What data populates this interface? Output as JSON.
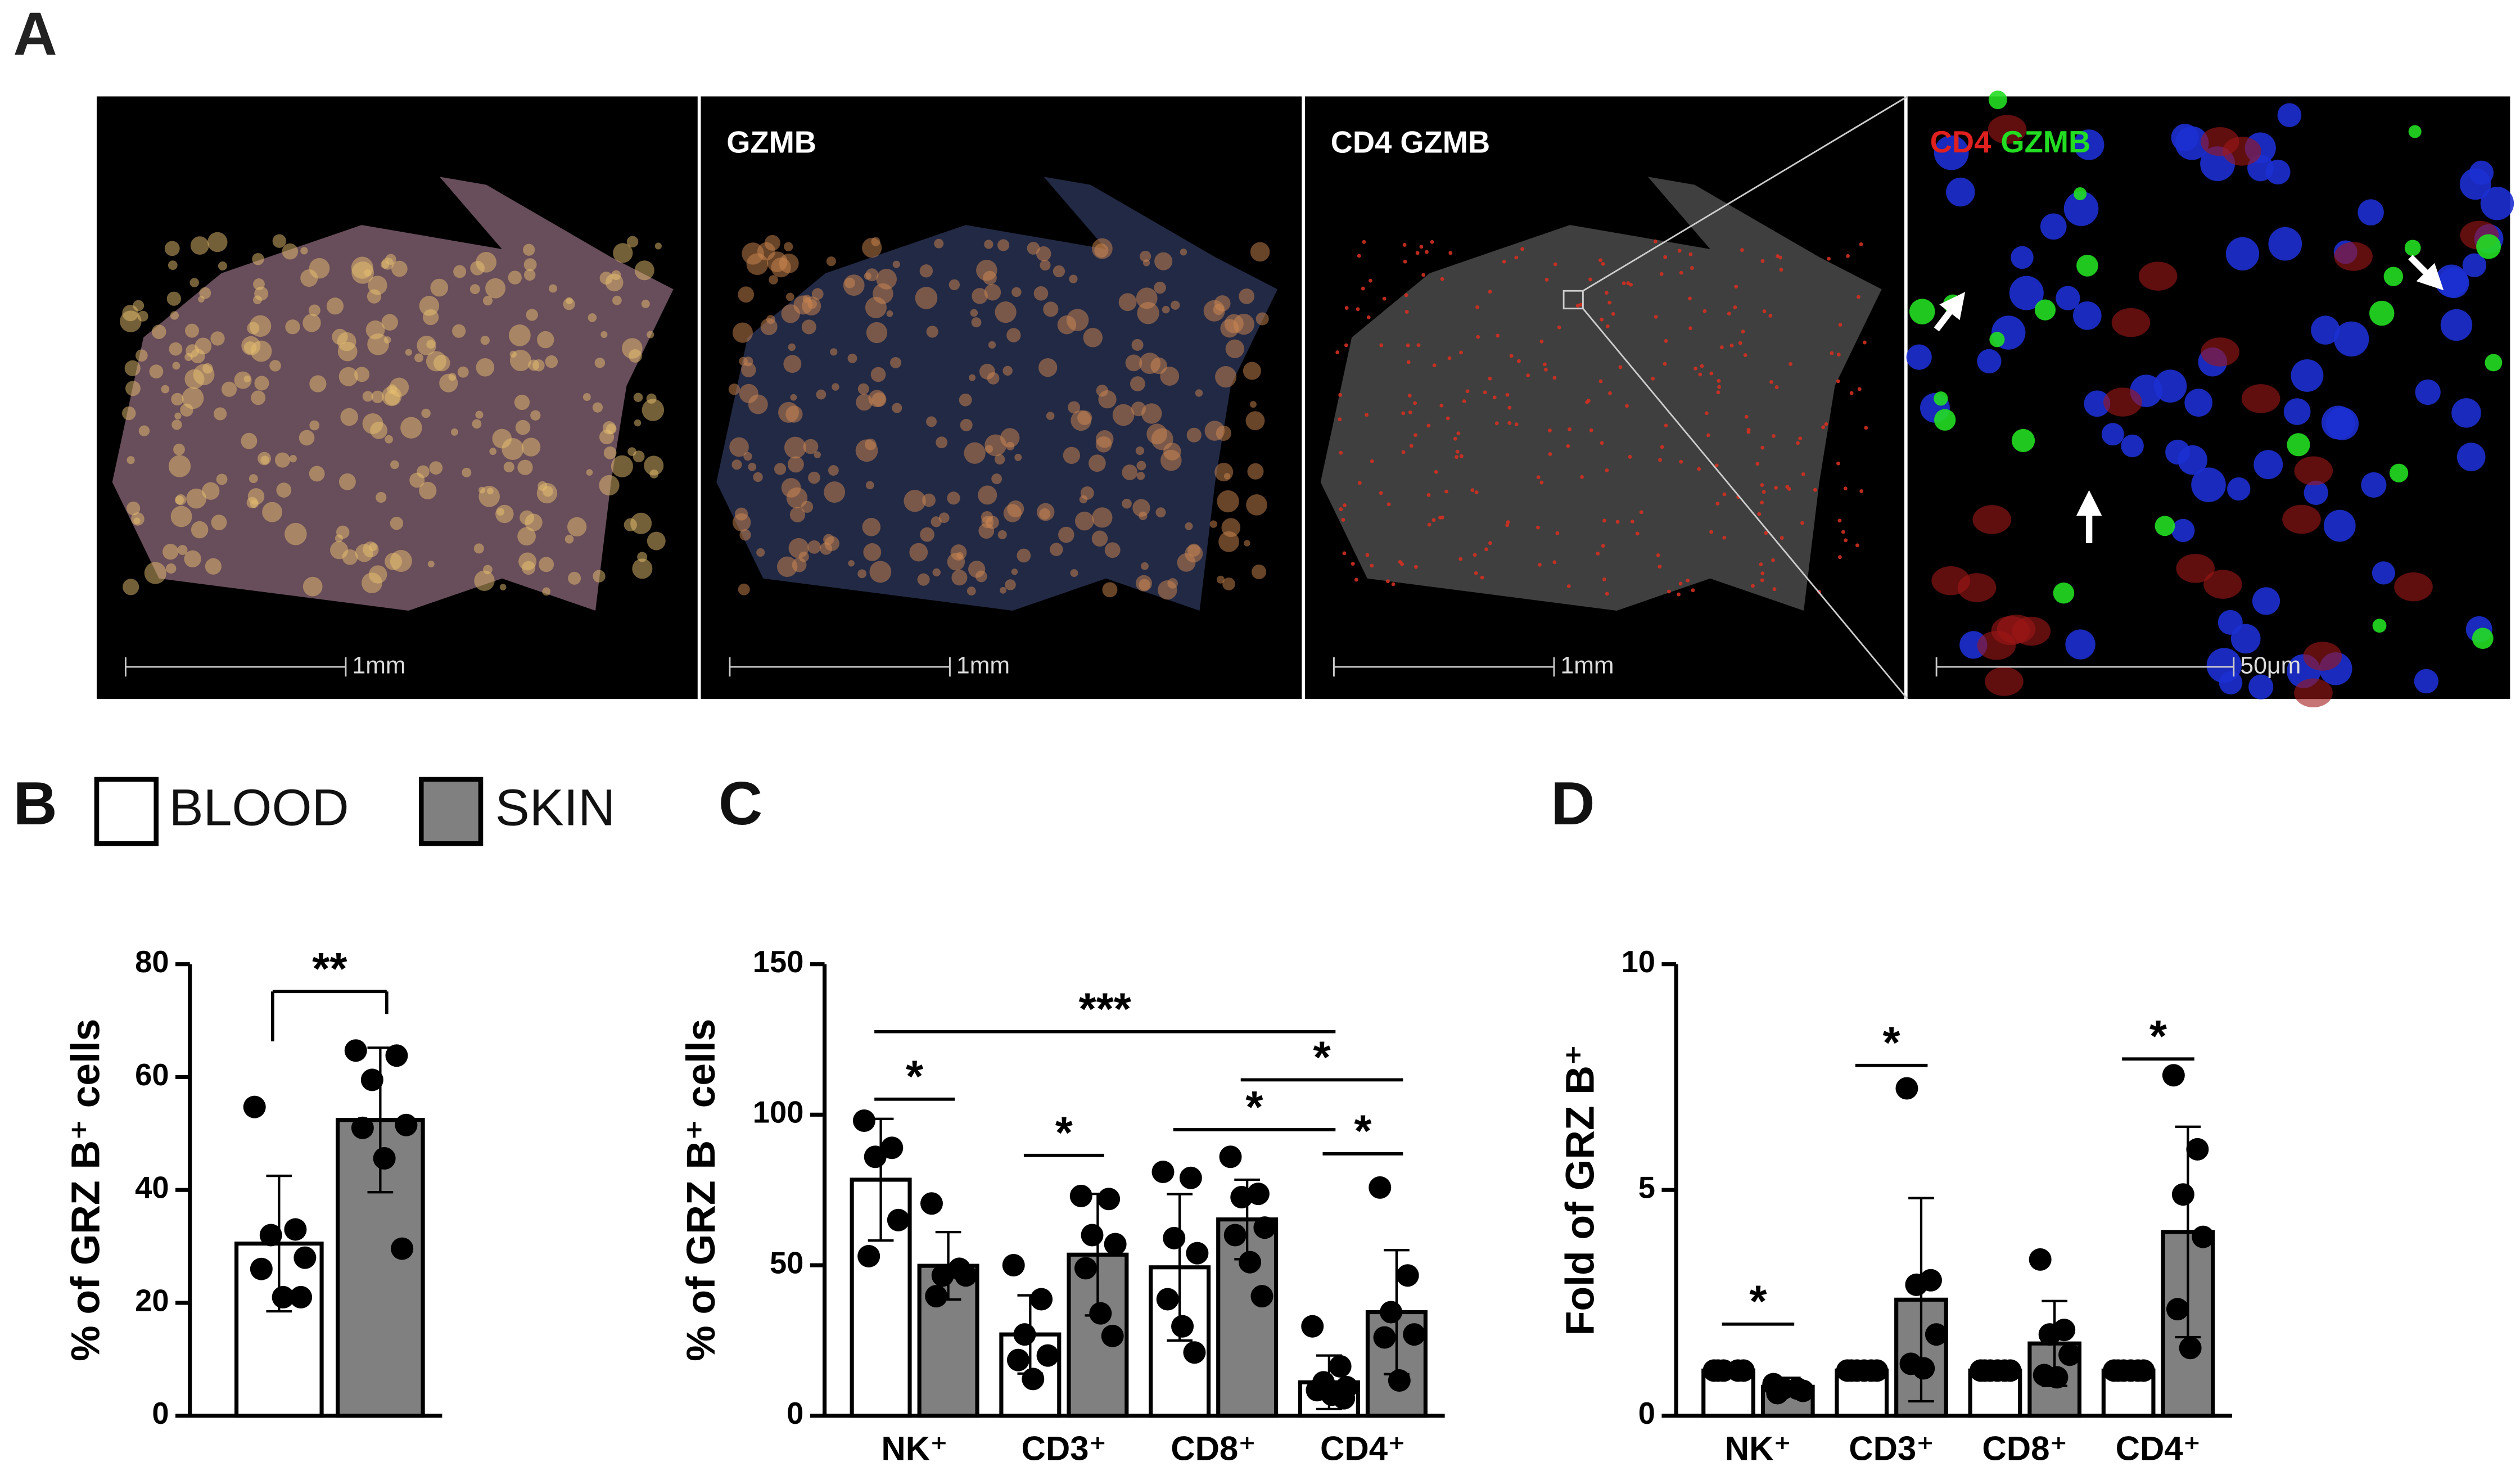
{
  "panel_a": {
    "label": "A",
    "images": [
      {
        "scale": "1mm"
      },
      {
        "title": "GZMB",
        "scale": "1mm"
      },
      {
        "title": "CD4 GZMB",
        "scale": "1mm"
      },
      {
        "title_parts": [
          {
            "text": "CD4",
            "color": "#e0201e"
          },
          {
            "text": "GZMB",
            "color": "#22dd22"
          }
        ],
        "scale": "50μm"
      }
    ]
  },
  "chart_data": [
    {
      "type": "bar",
      "panel": "B",
      "y_label": "% of GRZ B⁺ cells",
      "ylim": [
        0,
        80
      ],
      "yticks": [
        0,
        20,
        40,
        60,
        80
      ],
      "series": [
        {
          "name": "BLOOD",
          "color": "#ffffff",
          "values": [
            30.5
          ],
          "errors": [
            12
          ],
          "points": [
            [
              54.7,
              33,
              32,
              28,
              26,
              21,
              21
            ]
          ]
        },
        {
          "name": "SKIN",
          "color": "#808080",
          "values": [
            52.4
          ],
          "errors": [
            12.8
          ],
          "points": [
            [
              64.7,
              63.8,
              59.5,
              51.5,
              51,
              45.6,
              29.6
            ]
          ]
        }
      ],
      "annotations": [
        {
          "text": "**",
          "from": [
            0,
            0
          ],
          "to": [
            0,
            1
          ]
        }
      ]
    },
    {
      "type": "bar",
      "panel": "C",
      "y_label": "% of GRZ B⁺ cells",
      "ylim": [
        0,
        150
      ],
      "yticks": [
        0,
        50,
        100,
        150
      ],
      "categories": [
        "NK⁺",
        "CD3⁺",
        "CD8⁺",
        "CD4⁺"
      ],
      "series": [
        {
          "name": "BLOOD",
          "color": "#ffffff",
          "values": [
            78.4,
            27,
            49.3,
            11.1
          ],
          "errors": [
            20.2,
            13,
            24.3,
            8.9
          ],
          "points": [
            [
              98,
              89,
              86,
              65,
              53
            ],
            [
              50,
              38.7,
              27,
              20,
              18.5,
              12.2
            ],
            [
              81,
              79,
              59,
              54,
              38.7,
              29.7,
              21
            ],
            [
              29.7,
              16.4,
              11.1,
              9.5,
              8.5,
              7,
              5.8
            ]
          ]
        },
        {
          "name": "SKIN",
          "color": "#808080",
          "values": [
            49.8,
            53.5,
            65.2,
            34.4
          ],
          "errors": [
            11.2,
            20.2,
            13.2,
            20.6
          ],
          "points": [
            [
              70.5,
              48.8,
              46.6,
              46.6,
              39.7
            ],
            [
              73,
              72,
              60,
              57,
              49,
              34,
              26.5
            ],
            [
              86,
              73.7,
              72.6,
              62.5,
              60,
              51,
              39.7
            ],
            [
              75.8,
              46.6,
              34.4,
              27,
              26,
              11.7
            ]
          ]
        }
      ],
      "annotations": [
        {
          "text": "*",
          "from": [
            0,
            0
          ],
          "to": [
            0,
            1
          ]
        },
        {
          "text": "***",
          "from": [
            0,
            0
          ],
          "to": [
            3,
            0
          ]
        },
        {
          "text": "*",
          "from": [
            1,
            0
          ],
          "to": [
            1,
            1
          ]
        },
        {
          "text": "*",
          "from": [
            2,
            0
          ],
          "to": [
            3,
            0
          ]
        },
        {
          "text": "*",
          "from": [
            3,
            0
          ],
          "to": [
            3,
            1
          ]
        },
        {
          "text": "*",
          "from": [
            2,
            1
          ],
          "to": [
            3,
            1
          ]
        }
      ]
    },
    {
      "type": "bar",
      "panel": "D",
      "y_label": "Fold of GRZ B⁺",
      "ylim": [
        0,
        10
      ],
      "yticks": [
        0,
        5,
        10
      ],
      "categories": [
        "NK⁺",
        "CD3⁺",
        "CD8⁺",
        "CD4⁺"
      ],
      "series": [
        {
          "name": "BLOOD",
          "color": "#ffffff",
          "values": [
            1,
            1,
            1,
            1
          ],
          "points": [
            [
              1,
              1,
              1,
              1,
              1
            ],
            [
              1,
              1,
              1,
              1,
              1,
              1
            ],
            [
              1,
              1,
              1,
              1,
              1,
              1
            ],
            [
              1,
              1,
              1,
              1,
              1,
              1
            ]
          ]
        },
        {
          "name": "SKIN",
          "color": "#808080",
          "values": [
            0.64,
            2.57,
            1.6,
            4.07
          ],
          "errors": [
            0.2,
            2.25,
            0.94,
            2.33
          ],
          "points": [
            [
              0.7,
              0.6,
              0.6,
              0.55,
              0.5
            ],
            [
              7.25,
              3,
              2.9,
              1.8,
              1.15,
              1.05
            ],
            [
              3.46,
              1.9,
              1.8,
              1.35,
              0.9,
              0.85
            ],
            [
              7.54,
              5.9,
              4.9,
              3.96,
              2.36,
              1.5
            ]
          ]
        }
      ],
      "annotations": [
        {
          "text": "*",
          "from": [
            0,
            0
          ],
          "to": [
            0,
            1
          ]
        },
        {
          "text": "*",
          "from": [
            1,
            0
          ],
          "to": [
            1,
            1
          ]
        },
        {
          "text": "*",
          "from": [
            3,
            0
          ],
          "to": [
            3,
            1
          ]
        }
      ]
    }
  ]
}
